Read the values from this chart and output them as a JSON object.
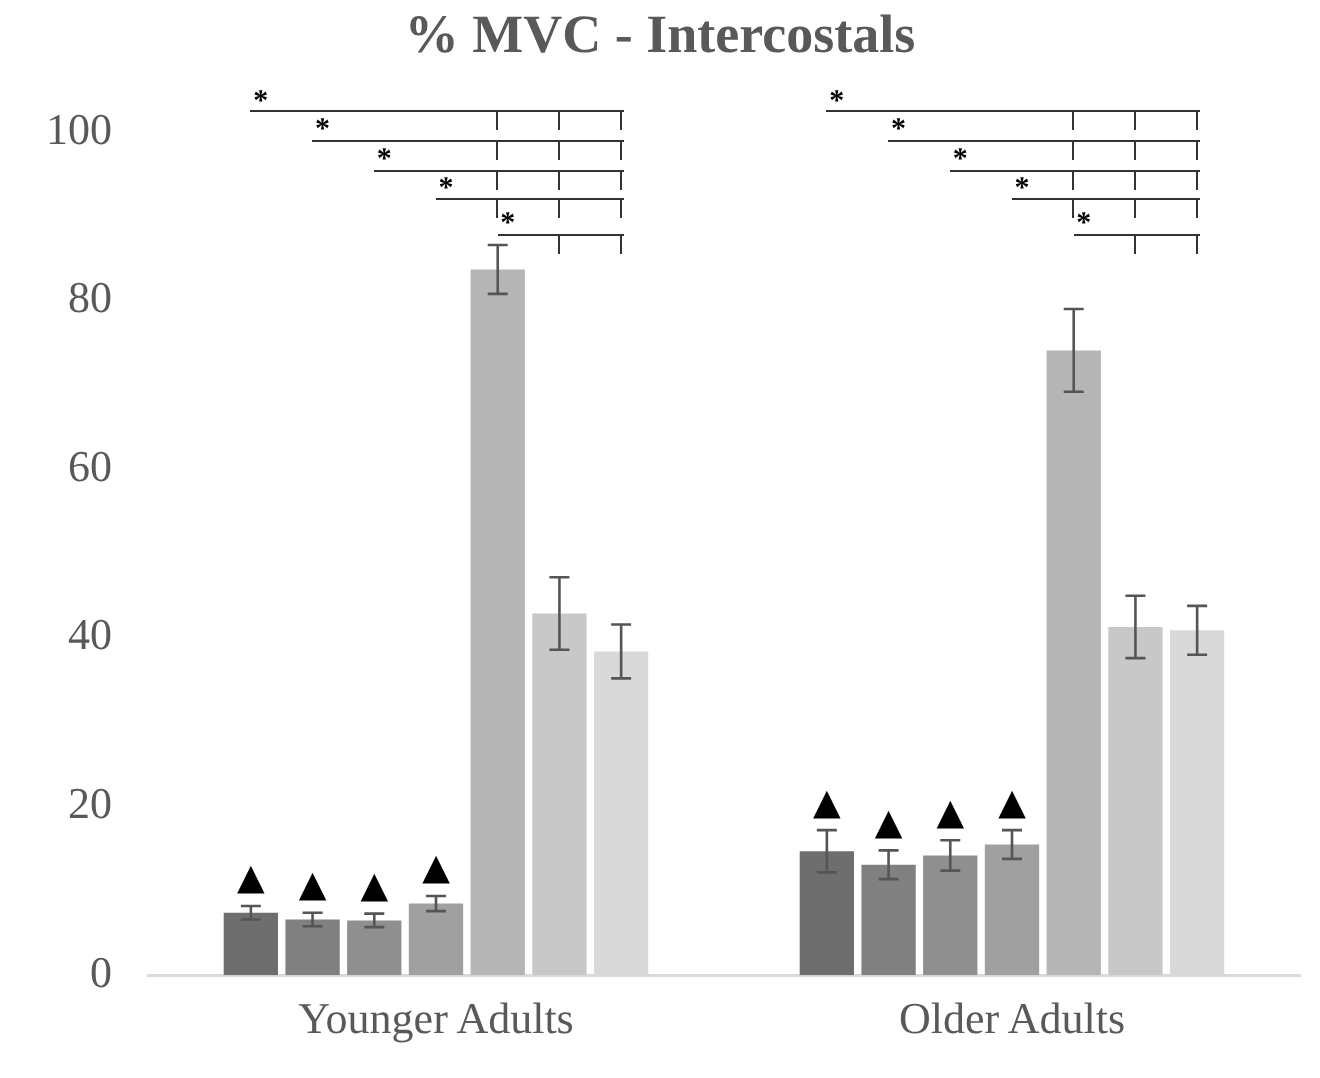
{
  "chart_data": {
    "type": "bar",
    "title": "% MVC - Intercostals",
    "categories": [
      "Younger Adults",
      "Older Adults"
    ],
    "series": [
      {
        "color": "#6e6e6e",
        "values": [
          7.4,
          14.7
        ],
        "errors": [
          0.8,
          2.5
        ]
      },
      {
        "color": "#808080",
        "values": [
          6.6,
          13.1
        ],
        "errors": [
          0.8,
          1.7
        ]
      },
      {
        "color": "#8f8f8f",
        "values": [
          6.5,
          14.2
        ],
        "errors": [
          0.8,
          1.8
        ]
      },
      {
        "color": "#a0a0a0",
        "values": [
          8.5,
          15.5
        ],
        "errors": [
          0.9,
          1.7
        ]
      },
      {
        "color": "#b5b5b5",
        "values": [
          83.7,
          74.1
        ],
        "errors": [
          2.9,
          4.9
        ]
      },
      {
        "color": "#c8c8c8",
        "values": [
          42.9,
          41.3
        ],
        "errors": [
          4.3,
          3.7
        ]
      },
      {
        "color": "#d9d9d9",
        "values": [
          38.4,
          40.9
        ],
        "errors": [
          3.2,
          2.9
        ]
      }
    ],
    "ylim": [
      0,
      100
    ],
    "yticks": [
      0,
      20,
      40,
      60,
      80,
      100
    ],
    "grid": false,
    "legend": false,
    "annotations": [
      "▲",
      "▲",
      "▲",
      "▲",
      "▲",
      "▲",
      "▲",
      "▲",
      "*",
      "*",
      "*",
      "*",
      "*",
      "*",
      "*",
      "*",
      "*",
      "*"
    ]
  }
}
